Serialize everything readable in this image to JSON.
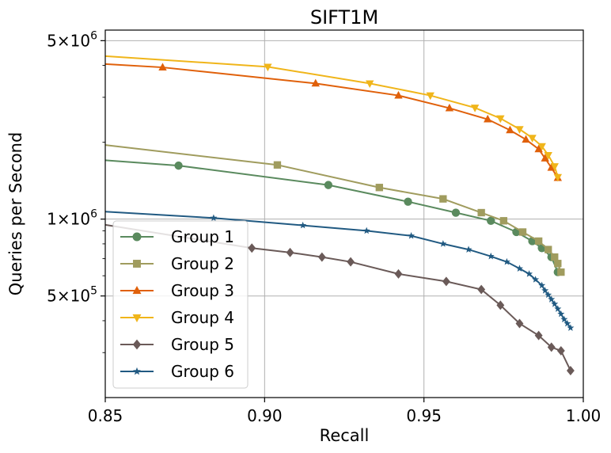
{
  "chart_data": {
    "type": "line",
    "title": "SIFT1M",
    "xlabel": "Recall",
    "ylabel": "Queries per Second",
    "xlim": [
      0.85,
      1.0
    ],
    "ylim": [
      200000,
      5500000
    ],
    "yscale": "log",
    "grid": true,
    "legend_position": "lower-left",
    "x_ticks": [
      {
        "value": 0.85,
        "label": "0.85"
      },
      {
        "value": 0.9,
        "label": "0.90"
      },
      {
        "value": 0.95,
        "label": "0.95"
      },
      {
        "value": 1.0,
        "label": "1.00"
      }
    ],
    "y_ticks": [
      {
        "value": 5000000,
        "mant": "5",
        "exp": "6"
      },
      {
        "value": 1000000,
        "mant": "1",
        "exp": "6"
      },
      {
        "value": 500000,
        "mant": "5",
        "exp": "5"
      }
    ],
    "y_minor_ticks": [
      300000,
      400000,
      600000,
      700000,
      800000,
      900000,
      2000000,
      3000000,
      4000000
    ],
    "series": [
      {
        "name": "Group 1",
        "color": "#5a8a5e",
        "marker": "circle",
        "marker_every": 1,
        "points": [
          [
            0.85,
            1700000
          ],
          [
            0.873,
            1620000
          ],
          [
            0.92,
            1360000
          ],
          [
            0.945,
            1170000
          ],
          [
            0.96,
            1060000
          ],
          [
            0.971,
            985000
          ],
          [
            0.979,
            890000
          ],
          [
            0.984,
            820000
          ],
          [
            0.987,
            770000
          ],
          [
            0.99,
            710000
          ],
          [
            0.992,
            620000
          ]
        ]
      },
      {
        "name": "Group 2",
        "color": "#a09c5e",
        "marker": "square",
        "marker_every": 1,
        "points": [
          [
            0.85,
            1950000
          ],
          [
            0.904,
            1630000
          ],
          [
            0.936,
            1330000
          ],
          [
            0.956,
            1200000
          ],
          [
            0.968,
            1060000
          ],
          [
            0.975,
            985000
          ],
          [
            0.981,
            890000
          ],
          [
            0.986,
            820000
          ],
          [
            0.989,
            760000
          ],
          [
            0.991,
            710000
          ],
          [
            0.992,
            670000
          ],
          [
            0.993,
            620000
          ]
        ]
      },
      {
        "name": "Group 3",
        "color": "#e0600a",
        "marker": "triangle-up",
        "marker_every": 1,
        "points": [
          [
            0.85,
            4050000
          ],
          [
            0.868,
            3930000
          ],
          [
            0.916,
            3400000
          ],
          [
            0.942,
            3050000
          ],
          [
            0.958,
            2720000
          ],
          [
            0.97,
            2460000
          ],
          [
            0.977,
            2230000
          ],
          [
            0.982,
            2050000
          ],
          [
            0.986,
            1880000
          ],
          [
            0.988,
            1730000
          ],
          [
            0.99,
            1590000
          ],
          [
            0.992,
            1450000
          ]
        ]
      },
      {
        "name": "Group 4",
        "color": "#f0b51a",
        "marker": "triangle-down",
        "marker_every": 1,
        "points": [
          [
            0.85,
            4350000
          ],
          [
            0.901,
            3950000
          ],
          [
            0.933,
            3400000
          ],
          [
            0.952,
            3050000
          ],
          [
            0.966,
            2730000
          ],
          [
            0.974,
            2480000
          ],
          [
            0.98,
            2250000
          ],
          [
            0.984,
            2080000
          ],
          [
            0.987,
            1930000
          ],
          [
            0.989,
            1780000
          ],
          [
            0.991,
            1610000
          ],
          [
            0.992,
            1460000
          ]
        ]
      },
      {
        "name": "Group 5",
        "color": "#6a5a58",
        "marker": "diamond",
        "marker_every": 1,
        "points": [
          [
            0.85,
            950000
          ],
          [
            0.896,
            770000
          ],
          [
            0.908,
            740000
          ],
          [
            0.918,
            710000
          ],
          [
            0.927,
            680000
          ],
          [
            0.942,
            610000
          ],
          [
            0.957,
            570000
          ],
          [
            0.968,
            530000
          ],
          [
            0.974,
            460000
          ],
          [
            0.98,
            390000
          ],
          [
            0.986,
            350000
          ],
          [
            0.99,
            315000
          ],
          [
            0.993,
            305000
          ],
          [
            0.996,
            255000
          ]
        ]
      },
      {
        "name": "Group 6",
        "color": "#215a82",
        "marker": "star",
        "marker_every": 1,
        "points": [
          [
            0.85,
            1070000
          ],
          [
            0.884,
            1010000
          ],
          [
            0.912,
            945000
          ],
          [
            0.932,
            900000
          ],
          [
            0.946,
            860000
          ],
          [
            0.956,
            800000
          ],
          [
            0.964,
            760000
          ],
          [
            0.971,
            715000
          ],
          [
            0.976,
            680000
          ],
          [
            0.98,
            640000
          ],
          [
            0.983,
            610000
          ],
          [
            0.985,
            580000
          ],
          [
            0.987,
            550000
          ],
          [
            0.988,
            525000
          ],
          [
            0.989,
            505000
          ],
          [
            0.99,
            485000
          ],
          [
            0.991,
            465000
          ],
          [
            0.992,
            445000
          ],
          [
            0.993,
            425000
          ],
          [
            0.994,
            405000
          ],
          [
            0.995,
            390000
          ],
          [
            0.996,
            375000
          ]
        ]
      }
    ]
  }
}
